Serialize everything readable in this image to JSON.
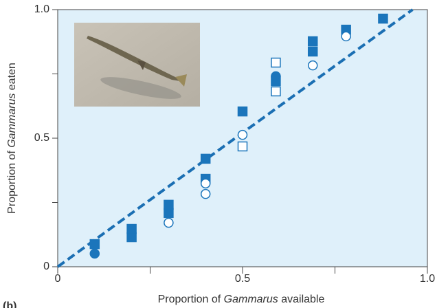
{
  "chart_data": {
    "type": "scatter",
    "xlabel": [
      "Proportion of ",
      "Gammarus",
      " available"
    ],
    "ylabel": [
      "Proportion of ",
      "Gammarus",
      " eaten"
    ],
    "panel_label": "(b)",
    "xlim": [
      0,
      1
    ],
    "ylim": [
      0,
      1
    ],
    "xticks": [
      0,
      {
        "value": 0.5,
        "label": "0.5"
      },
      {
        "value": 1,
        "label": "1.0"
      }
    ],
    "yticks": [
      0,
      {
        "value": 0.5,
        "label": "0.5"
      },
      {
        "value": 1,
        "label": "1.0"
      }
    ],
    "xminorticks": [
      0.25,
      0.75
    ],
    "yminorticks": [
      0.25,
      0.75
    ],
    "background": "#dff0fa",
    "reference_line": {
      "x": [
        0,
        0.96
      ],
      "y": [
        0,
        1
      ],
      "color": "#1b6fb3",
      "dashed": true
    },
    "series": [
      {
        "marker": "square",
        "filled": true,
        "color": "#1b75bb",
        "x": [
          0.1,
          0.2,
          0.2,
          0.3,
          0.3,
          0.4,
          0.4,
          0.5,
          0.59,
          0.69,
          0.69,
          0.78,
          0.88
        ],
        "y": [
          0.088,
          0.147,
          0.115,
          0.241,
          0.209,
          0.42,
          0.342,
          0.604,
          0.722,
          0.877,
          0.837,
          0.922,
          0.965
        ]
      },
      {
        "marker": "circle",
        "filled": true,
        "color": "#1b75bb",
        "x": [
          0.1,
          0.59
        ],
        "y": [
          0.051,
          0.741
        ]
      },
      {
        "marker": "square",
        "filled": false,
        "color": "#1b75bb",
        "x": [
          0.5,
          0.59,
          0.59
        ],
        "y": [
          0.468,
          0.794,
          0.682
        ]
      },
      {
        "marker": "circle",
        "filled": false,
        "color": "#1b75bb",
        "x": [
          0.3,
          0.4,
          0.4,
          0.5,
          0.69,
          0.78
        ],
        "y": [
          0.171,
          0.324,
          0.283,
          0.513,
          0.783,
          0.896
        ]
      }
    ]
  }
}
